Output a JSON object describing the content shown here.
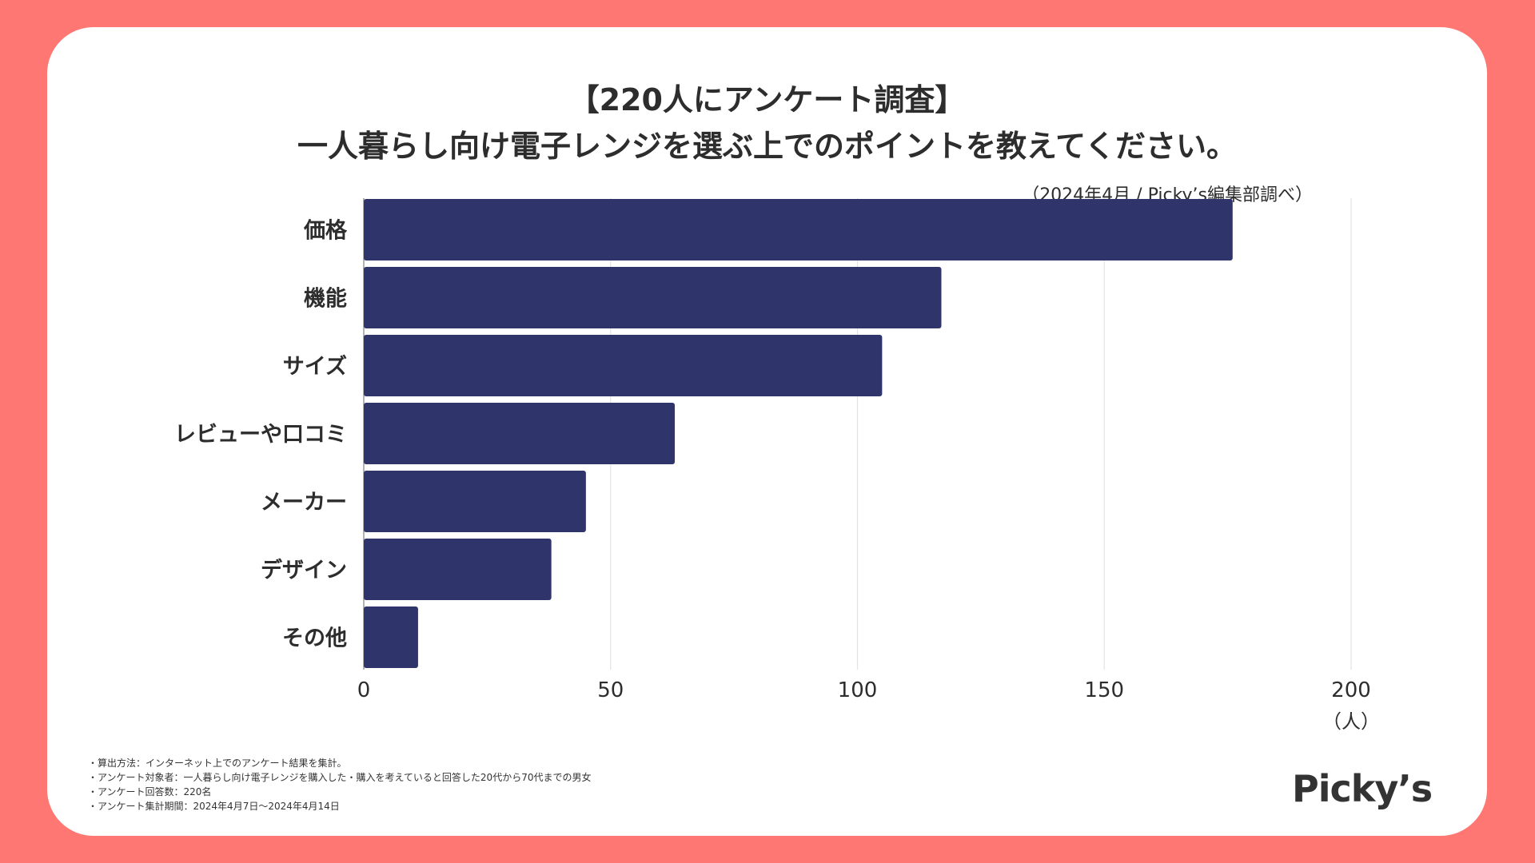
{
  "title_line1": "【220人にアンケート調査】",
  "title_line2": "一人暮らし向け電子レンジを選ぶ上でのポイントを教えてください。",
  "source": "（2024年4月 / Picky’s編集部調べ）",
  "chart_data": {
    "type": "bar",
    "orientation": "horizontal",
    "title": "一人暮らし向け電子レンジを選ぶ上でのポイントを教えてください。",
    "categories": [
      "価格",
      "機能",
      "サイズ",
      "レビューや口コミ",
      "メーカー",
      "デザイン",
      "その他"
    ],
    "values": [
      176,
      117,
      105,
      63,
      45,
      38,
      11
    ],
    "xlim": [
      0,
      200
    ],
    "xticks": [
      0,
      50,
      100,
      150,
      200
    ],
    "xlabel": "（人）",
    "ylabel": "",
    "grid": true,
    "bar_color": "#2f346b"
  },
  "notes": [
    "・算出方法：インターネット上でのアンケート結果を集計。",
    "・アンケート対象者：一人暮らし向け電子レンジを購入した・購入を考えていると回答した20代から70代までの男女",
    "・アンケート回答数：220名",
    "・アンケート集計期間：2024年4月7日〜2024年4月14日"
  ],
  "logo_text": "Picky’s",
  "colors": {
    "background": "#ff7772",
    "card": "#ffffff",
    "bar": "#2f346b",
    "text": "#2d2d2d",
    "grid": "#e3e3e3"
  }
}
